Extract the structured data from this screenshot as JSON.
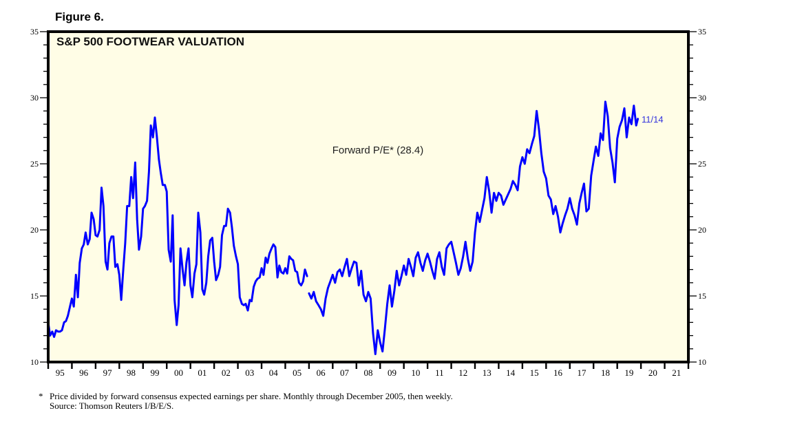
{
  "figure_label": "Figure 6.",
  "footnote": {
    "marker": "*",
    "text": "Price divided by forward consensus expected earnings per share. Monthly through December 2005, then weekly.",
    "source": "Source: Thomson Reuters I/B/E/S."
  },
  "colors": {
    "plot_background": "#fffde6",
    "series_line": "#0000ff",
    "annotation_text": "#3333dd",
    "frame": "#000000"
  },
  "chart_data": {
    "type": "line",
    "title": "S&P 500 FOOTWEAR VALUATION",
    "xlabel": "",
    "ylabel": "",
    "ylim": [
      10,
      35
    ],
    "xlim": [
      1995,
      2022
    ],
    "yticks": [
      10,
      15,
      20,
      25,
      30,
      35
    ],
    "ytick_labels_left": [
      "10",
      "15",
      "20",
      "25",
      "30",
      "35"
    ],
    "ytick_labels_right": [
      "10",
      "15",
      "20",
      "25",
      "30",
      "35"
    ],
    "y_minor_step": 1,
    "xtick_labels": [
      "95",
      "96",
      "97",
      "98",
      "99",
      "00",
      "01",
      "02",
      "03",
      "04",
      "05",
      "06",
      "07",
      "08",
      "09",
      "10",
      "11",
      "12",
      "13",
      "14",
      "15",
      "16",
      "17",
      "18",
      "19",
      "20",
      "21"
    ],
    "grid": false,
    "series_label": "Forward P/E* (28.4)",
    "end_annotation": "11/14",
    "series": [
      {
        "name": "Forward P/E",
        "segments": [
          {
            "frequency": "monthly",
            "x": [
              1995.0,
              1995.08,
              1995.17,
              1995.25,
              1995.33,
              1995.42,
              1995.5,
              1995.58,
              1995.67,
              1995.75,
              1995.83,
              1995.92,
              1996.0,
              1996.08,
              1996.17,
              1996.25,
              1996.33,
              1996.42,
              1996.5,
              1996.58,
              1996.67,
              1996.75,
              1996.83,
              1996.92,
              1997.0,
              1997.08,
              1997.17,
              1997.25,
              1997.33,
              1997.42,
              1997.5,
              1997.58,
              1997.67,
              1997.75,
              1997.83,
              1997.92,
              1998.0,
              1998.08,
              1998.17,
              1998.25,
              1998.33,
              1998.42,
              1998.5,
              1998.58,
              1998.67,
              1998.75,
              1998.83,
              1998.92,
              1999.0,
              1999.08,
              1999.17,
              1999.25,
              1999.33,
              1999.42,
              1999.5,
              1999.58,
              1999.67,
              1999.75,
              1999.83,
              1999.92,
              2000.0,
              2000.08,
              2000.17,
              2000.25,
              2000.33,
              2000.42,
              2000.5,
              2000.58,
              2000.67,
              2000.75,
              2000.83,
              2000.92,
              2001.0,
              2001.08,
              2001.17,
              2001.25,
              2001.33,
              2001.42,
              2001.5,
              2001.58,
              2001.67,
              2001.75,
              2001.83,
              2001.92,
              2002.0,
              2002.08,
              2002.17,
              2002.25,
              2002.33,
              2002.42,
              2002.5,
              2002.58,
              2002.67,
              2002.75,
              2002.83,
              2002.92,
              2003.0,
              2003.08,
              2003.17,
              2003.25,
              2003.33,
              2003.42,
              2003.5,
              2003.58,
              2003.67,
              2003.75,
              2003.83,
              2003.92,
              2004.0,
              2004.08,
              2004.17,
              2004.25,
              2004.33,
              2004.42,
              2004.5,
              2004.58,
              2004.67,
              2004.75,
              2004.83,
              2004.92,
              2005.0,
              2005.08,
              2005.17,
              2005.25,
              2005.33,
              2005.42,
              2005.5,
              2005.58,
              2005.67,
              2005.75,
              2005.83,
              2005.92
            ],
            "y": [
              13.0,
              12.0,
              12.3,
              11.9,
              12.4,
              12.3,
              12.3,
              12.4,
              13.0,
              13.1,
              13.5,
              14.2,
              14.8,
              14.2,
              16.6,
              14.9,
              17.5,
              18.6,
              18.9,
              19.8,
              18.9,
              19.3,
              21.3,
              20.8,
              19.6,
              19.5,
              20.0,
              23.2,
              21.8,
              17.6,
              17.0,
              19.0,
              19.5,
              19.5,
              17.2,
              17.4,
              16.6,
              14.7,
              17.1,
              19.0,
              21.8,
              21.8,
              24.0,
              22.4,
              25.1,
              20.8,
              18.5,
              19.5,
              21.6,
              21.8,
              22.2,
              24.4,
              27.9,
              27.0,
              28.5,
              27.1,
              25.3,
              24.3,
              23.4,
              23.4,
              22.9,
              18.5,
              17.6,
              21.1,
              14.7,
              12.8,
              14.3,
              18.6,
              17.0,
              15.8,
              17.5,
              18.6,
              15.8,
              14.9,
              16.7,
              17.4,
              21.3,
              19.8,
              15.5,
              15.1,
              16.0,
              18.0,
              19.2,
              19.4,
              17.6,
              16.2,
              16.6,
              17.2,
              19.6,
              20.3,
              20.3,
              21.6,
              21.3,
              20.2,
              18.8,
              18.0,
              17.4,
              14.9,
              14.4,
              14.3,
              14.4,
              13.9,
              14.7,
              14.6,
              15.7,
              16.1,
              16.3,
              16.4,
              17.1,
              16.6,
              17.9,
              17.5,
              18.2,
              18.6,
              18.9,
              18.7,
              16.4,
              17.3,
              16.8,
              16.7,
              17.1,
              16.7,
              18.0,
              17.8,
              17.7,
              16.9,
              16.8,
              16.0,
              15.8,
              16.1,
              17.0,
              16.5
            ],
            "note": "approximate, read from chart"
          },
          {
            "frequency": "weekly (sampled)",
            "x": [
              2006.0,
              2006.1,
              2006.2,
              2006.3,
              2006.4,
              2006.5,
              2006.6,
              2006.7,
              2006.8,
              2006.9,
              2007.0,
              2007.1,
              2007.2,
              2007.3,
              2007.4,
              2007.5,
              2007.6,
              2007.7,
              2007.8,
              2007.9,
              2008.0,
              2008.1,
              2008.2,
              2008.3,
              2008.4,
              2008.5,
              2008.6,
              2008.7,
              2008.8,
              2008.9,
              2009.0,
              2009.1,
              2009.2,
              2009.3,
              2009.4,
              2009.5,
              2009.6,
              2009.7,
              2009.8,
              2009.9,
              2010.0,
              2010.1,
              2010.2,
              2010.3,
              2010.4,
              2010.5,
              2010.6,
              2010.7,
              2010.8,
              2010.9,
              2011.0,
              2011.1,
              2011.2,
              2011.3,
              2011.4,
              2011.5,
              2011.6,
              2011.7,
              2011.8,
              2011.9,
              2012.0,
              2012.1,
              2012.2,
              2012.3,
              2012.4,
              2012.5,
              2012.6,
              2012.7,
              2012.8,
              2012.9,
              2013.0,
              2013.1,
              2013.2,
              2013.3,
              2013.4,
              2013.5,
              2013.6,
              2013.7,
              2013.8,
              2013.9,
              2014.0,
              2014.1,
              2014.2,
              2014.3,
              2014.4,
              2014.5,
              2014.6,
              2014.7,
              2014.8,
              2014.9,
              2015.0,
              2015.1,
              2015.2,
              2015.3,
              2015.4,
              2015.5,
              2015.6,
              2015.7,
              2015.8,
              2015.9,
              2016.0,
              2016.1,
              2016.2,
              2016.3,
              2016.4,
              2016.5,
              2016.6,
              2016.7,
              2016.8,
              2016.9,
              2017.0,
              2017.1,
              2017.2,
              2017.3,
              2017.4,
              2017.5,
              2017.6,
              2017.7,
              2017.8,
              2017.9,
              2018.0,
              2018.1,
              2018.2,
              2018.3,
              2018.4,
              2018.5,
              2018.6,
              2018.7,
              2018.8,
              2018.9,
              2019.0,
              2019.1,
              2019.2,
              2019.3,
              2019.4,
              2019.5,
              2019.6,
              2019.7,
              2019.8,
              2019.87
            ],
            "y": [
              15.2,
              14.8,
              15.3,
              14.6,
              14.3,
              14.0,
              13.5,
              14.8,
              15.6,
              16.1,
              16.6,
              16.0,
              16.8,
              17.0,
              16.5,
              17.2,
              17.8,
              16.5,
              17.1,
              17.6,
              17.5,
              15.8,
              16.9,
              15.1,
              14.6,
              15.3,
              14.8,
              12.2,
              10.6,
              12.4,
              11.5,
              10.8,
              12.5,
              14.4,
              15.8,
              14.2,
              15.4,
              16.9,
              15.8,
              16.5,
              17.3,
              16.6,
              17.8,
              17.2,
              16.5,
              17.9,
              18.3,
              17.5,
              16.9,
              17.7,
              18.2,
              17.6,
              16.9,
              16.3,
              17.8,
              18.3,
              17.2,
              16.6,
              18.6,
              18.9,
              19.1,
              18.3,
              17.5,
              16.6,
              17.1,
              18.0,
              19.1,
              17.8,
              16.9,
              17.6,
              19.8,
              21.3,
              20.6,
              21.5,
              22.4,
              24.0,
              22.9,
              21.3,
              22.8,
              22.2,
              22.8,
              22.6,
              21.9,
              22.3,
              22.7,
              23.1,
              23.7,
              23.4,
              23.0,
              24.8,
              25.5,
              25.0,
              26.1,
              25.8,
              26.5,
              27.1,
              29.0,
              27.6,
              25.8,
              24.4,
              23.9,
              22.6,
              22.3,
              21.2,
              21.8,
              21.0,
              19.8,
              20.5,
              21.1,
              21.6,
              22.4,
              21.6,
              21.1,
              20.4,
              22.0,
              22.8,
              23.5,
              21.4,
              21.6,
              24.1,
              25.2,
              26.3,
              25.6,
              27.3,
              26.8,
              29.7,
              28.6,
              26.2,
              25.1,
              23.6,
              26.9,
              27.8,
              28.3,
              29.2,
              27.0,
              28.5,
              28.0,
              29.4,
              27.9,
              28.4
            ]
          }
        ]
      }
    ]
  }
}
